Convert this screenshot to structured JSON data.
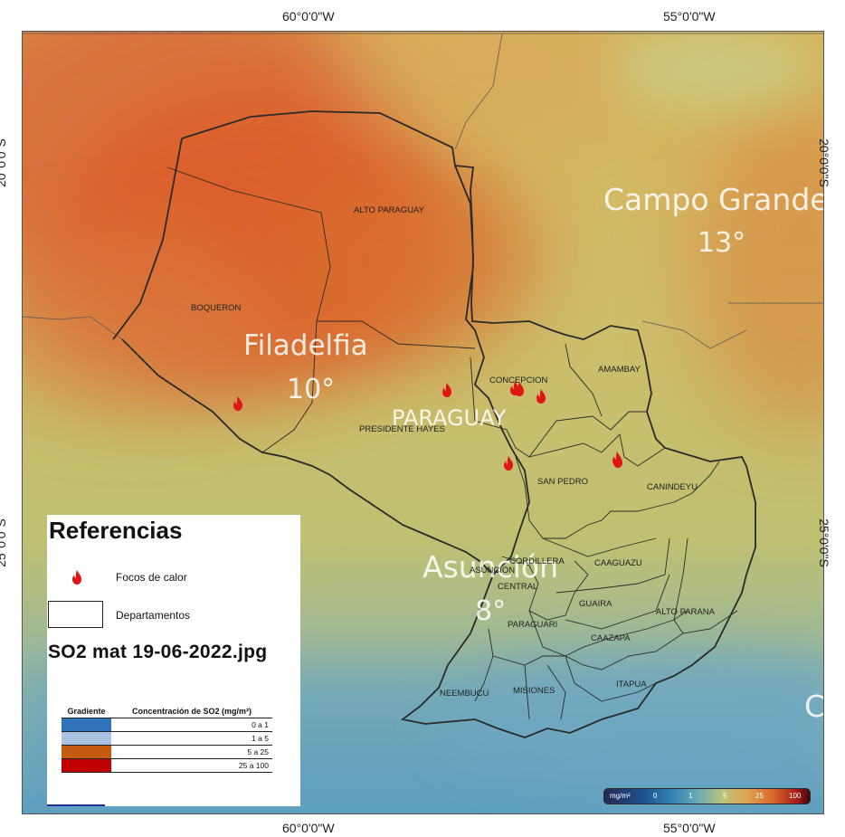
{
  "graticule": {
    "top_left": "60°0'0\"W",
    "top_right": "55°0'0\"W",
    "bottom_left": "60°0'0\"W",
    "bottom_right": "55°0'0\"W",
    "left_upper": "20°0'0\"S",
    "left_lower": "25°0'0\"S",
    "right_upper": "20°0'0\"S",
    "right_lower": "25°0'0\"S"
  },
  "departments": {
    "alto_paraguay": "ALTO PARAGUAY",
    "boqueron": "BOQUERON",
    "concepcion": "CONCEPCION",
    "amambay": "AMAMBAY",
    "presidente_hayes": "PRESIDENTE HAYES",
    "san_pedro": "SAN PEDRO",
    "canindeyu": "CANINDEYU",
    "cordillera": "CORDILLERA",
    "asuncion": "ASUNCION",
    "central": "CENTRAL",
    "caaguazu": "CAAGUAZU",
    "guaira": "GUAIRA",
    "alto_parana": "ALTO PARANA",
    "paraguari": "PARAGUARI",
    "caazapa": "CAAZAPA",
    "neembucu": "NEEMBUCU",
    "misiones": "MISIONES",
    "itapua": "ITAPUA"
  },
  "basemap_labels": {
    "country": "PARAGUAY",
    "city1_name": "Campo Grande",
    "city1_temp": "13°",
    "city2_name": "Filadelfia",
    "city2_temp": "10°",
    "city3_name": "Asunción",
    "city3_temp": "8°",
    "edge_fragment": "C"
  },
  "legend": {
    "title": "Referencias",
    "fire_label": "Focos de calor",
    "departments_label": "Departamentos",
    "filename": "SO2  mat  19-06-2022.jpg",
    "table_header_gradient": "Gradiente",
    "table_header_concentration": "Concentración de SO2 (mg/m²)",
    "rows": [
      {
        "range": "0 a 1",
        "color": "#2f72b8"
      },
      {
        "range": "1 a 5",
        "color": "#a9c2e6"
      },
      {
        "range": "5 a 25",
        "color": "#c55a11"
      },
      {
        "range": "25 a 100",
        "color": "#c00000"
      }
    ]
  },
  "scale": {
    "unit": "mg/m²",
    "ticks": [
      "0",
      "1",
      "5",
      "25",
      "100"
    ]
  },
  "fire_count": 8
}
